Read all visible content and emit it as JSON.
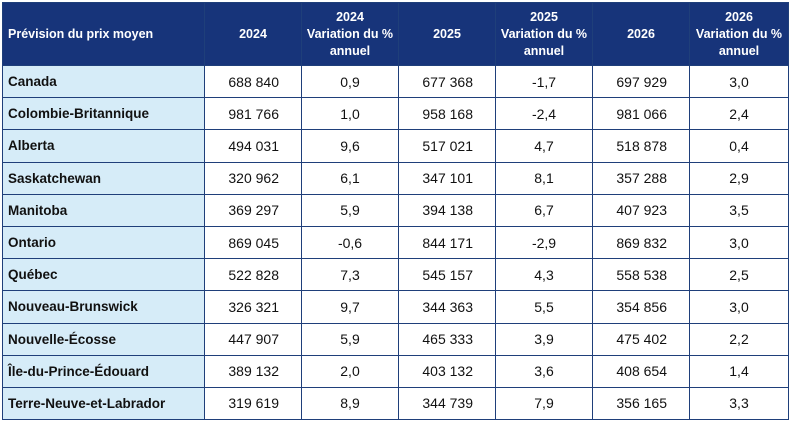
{
  "header": {
    "label_col": "Prévision du prix moyen",
    "y2024": "2024",
    "y2024_change_line1": "2024",
    "y2024_change_line2": "Variation du %",
    "y2024_change_line3": "annuel",
    "y2025": "2025",
    "y2025_change_line1": "2025",
    "y2025_change_line2": "Variation du %",
    "y2025_change_line3": "annuel",
    "y2026": "2026",
    "y2026_change_line1": "2026",
    "y2026_change_line2": "Variation du %",
    "y2026_change_line3": "annuel"
  },
  "rows": [
    {
      "name": "Canada",
      "p2024": "688 840",
      "c2024": "0,9",
      "p2025": "677 368",
      "c2025": "-1,7",
      "p2026": "697 929",
      "c2026": "3,0"
    },
    {
      "name": "Colombie-Britannique",
      "p2024": "981 766",
      "c2024": "1,0",
      "p2025": "958 168",
      "c2025": "-2,4",
      "p2026": "981 066",
      "c2026": "2,4"
    },
    {
      "name": "Alberta",
      "p2024": "494 031",
      "c2024": "9,6",
      "p2025": "517 021",
      "c2025": "4,7",
      "p2026": "518 878",
      "c2026": "0,4"
    },
    {
      "name": "Saskatchewan",
      "p2024": "320 962",
      "c2024": "6,1",
      "p2025": "347 101",
      "c2025": "8,1",
      "p2026": "357 288",
      "c2026": "2,9"
    },
    {
      "name": "Manitoba",
      "p2024": "369 297",
      "c2024": "5,9",
      "p2025": "394 138",
      "c2025": "6,7",
      "p2026": "407 923",
      "c2026": "3,5"
    },
    {
      "name": "Ontario",
      "p2024": "869 045",
      "c2024": "-0,6",
      "p2025": "844 171",
      "c2025": "-2,9",
      "p2026": "869 832",
      "c2026": "3,0"
    },
    {
      "name": "Québec",
      "p2024": "522 828",
      "c2024": "7,3",
      "p2025": "545 157",
      "c2025": "4,3",
      "p2026": "558 538",
      "c2026": "2,5"
    },
    {
      "name": "Nouveau-Brunswick",
      "p2024": "326 321",
      "c2024": "9,7",
      "p2025": "344 363",
      "c2025": "5,5",
      "p2026": "354 856",
      "c2026": "3,0"
    },
    {
      "name": "Nouvelle-Écosse",
      "p2024": "447 907",
      "c2024": "5,9",
      "p2025": "465 333",
      "c2025": "3,9",
      "p2026": "475 402",
      "c2026": "2,2"
    },
    {
      "name": "Île-du-Prince-Édouard",
      "p2024": "389 132",
      "c2024": "2,0",
      "p2025": "403 132",
      "c2025": "3,6",
      "p2026": "408 654",
      "c2026": "1,4"
    },
    {
      "name": "Terre-Neuve-et-Labrador",
      "p2024": "319 619",
      "c2024": "8,9",
      "p2025": "344 739",
      "c2025": "7,9",
      "p2026": "356 165",
      "c2026": "3,3"
    }
  ]
}
